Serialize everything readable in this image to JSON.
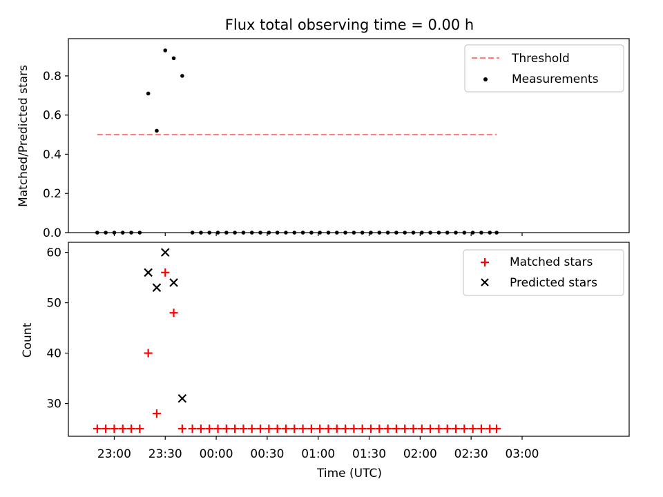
{
  "figure": {
    "title": "Flux total observing time = 0.00 h",
    "xlabel": "Time (UTC)",
    "x_tick_labels": [
      "23:00",
      "23:30",
      "00:00",
      "00:30",
      "01:00",
      "01:30",
      "02:00",
      "02:30",
      "03:00"
    ]
  },
  "top_panel": {
    "ylabel": "Matched/Predicted stars",
    "y_tick_labels": [
      "0.0",
      "0.2",
      "0.4",
      "0.6",
      "0.8"
    ],
    "legend": {
      "threshold": "Threshold",
      "measurements": "Measurements"
    }
  },
  "bottom_panel": {
    "ylabel": "Count",
    "y_tick_labels": [
      "30",
      "40",
      "50",
      "60"
    ],
    "legend": {
      "matched": "Matched stars",
      "predicted": "Predicted stars"
    }
  },
  "colors": {
    "threshold": "#ff7f7f",
    "measurements": "#000000",
    "matched": "#ff0000",
    "predicted": "#000000"
  },
  "chart_data": [
    {
      "type": "scatter",
      "title": "Flux total observing time = 0.00 h",
      "xlabel": "",
      "ylabel": "Matched/Predicted stars",
      "x_unit": "minutes after 23:00 UTC",
      "xlim": [
        -27,
        303
      ],
      "ylim": [
        0,
        0.99
      ],
      "grid": false,
      "legend_position": "top-right",
      "threshold": {
        "name": "Threshold",
        "y": 0.5,
        "x_range": [
          -10,
          225
        ]
      },
      "series": [
        {
          "name": "Measurements",
          "x": [
            -10,
            -5,
            0,
            5,
            10,
            15,
            20,
            25,
            30,
            35,
            40,
            46,
            51,
            56,
            61,
            66,
            71,
            76,
            81,
            86,
            91,
            96,
            101,
            106,
            111,
            116,
            121,
            126,
            131,
            136,
            141,
            146,
            151,
            156,
            161,
            166,
            171,
            176,
            181,
            186,
            191,
            196,
            201,
            206,
            211,
            216,
            221,
            225
          ],
          "y": [
            0,
            0,
            0,
            0,
            0,
            0,
            0.71,
            0.52,
            0.93,
            0.89,
            0.8,
            0,
            0,
            0,
            0,
            0,
            0,
            0,
            0,
            0,
            0,
            0,
            0,
            0,
            0,
            0,
            0,
            0,
            0,
            0,
            0,
            0,
            0,
            0,
            0,
            0,
            0,
            0,
            0,
            0,
            0,
            0,
            0,
            0,
            0,
            0,
            0,
            0
          ]
        }
      ]
    },
    {
      "type": "scatter",
      "title": "",
      "xlabel": "Time (UTC)",
      "ylabel": "Count",
      "x_unit": "minutes after 23:00 UTC",
      "xlim": [
        -27,
        303
      ],
      "ylim": [
        23.5,
        62
      ],
      "grid": false,
      "legend_position": "top-right",
      "series": [
        {
          "name": "Matched stars",
          "x": [
            -10,
            -5,
            0,
            5,
            10,
            15,
            20,
            25,
            30,
            35,
            40,
            46,
            51,
            56,
            61,
            66,
            71,
            76,
            81,
            86,
            91,
            96,
            101,
            106,
            111,
            116,
            121,
            126,
            131,
            136,
            141,
            146,
            151,
            156,
            161,
            166,
            171,
            176,
            181,
            186,
            191,
            196,
            201,
            206,
            211,
            216,
            221,
            225
          ],
          "y": [
            25,
            25,
            25,
            25,
            25,
            25,
            40,
            28,
            56,
            48,
            25,
            25,
            25,
            25,
            25,
            25,
            25,
            25,
            25,
            25,
            25,
            25,
            25,
            25,
            25,
            25,
            25,
            25,
            25,
            25,
            25,
            25,
            25,
            25,
            25,
            25,
            25,
            25,
            25,
            25,
            25,
            25,
            25,
            25,
            25,
            25,
            25,
            25
          ]
        },
        {
          "name": "Predicted stars",
          "x": [
            20,
            25,
            30,
            35,
            40
          ],
          "y": [
            56,
            53,
            60,
            54,
            31
          ]
        }
      ]
    }
  ]
}
